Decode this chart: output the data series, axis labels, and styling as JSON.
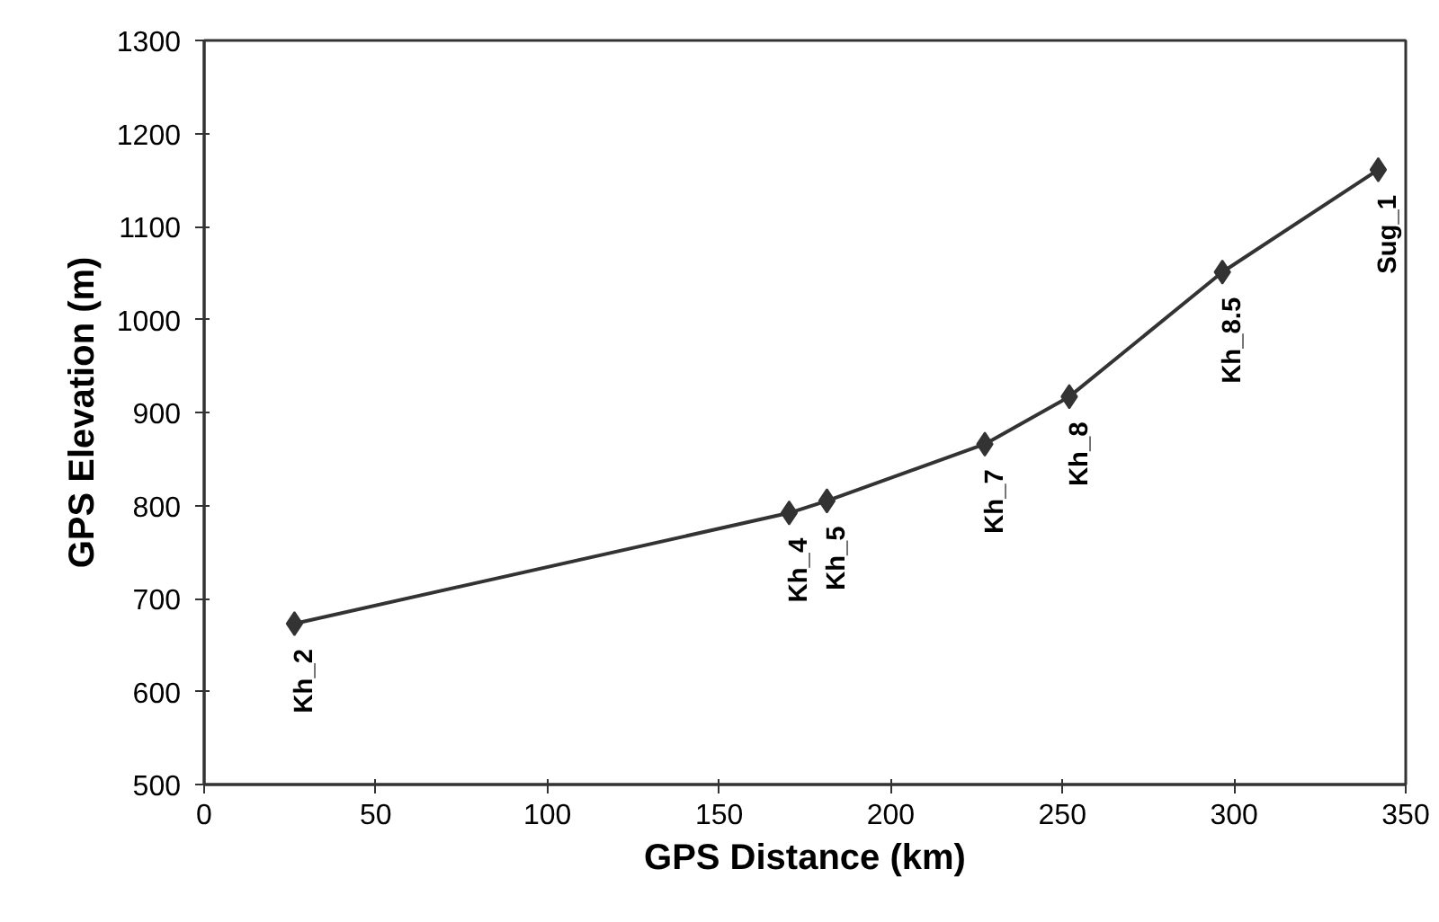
{
  "chart_data": {
    "type": "line",
    "xlabel": "GPS Distance (km)",
    "ylabel": "GPS Elevation (m)",
    "x": [
      26.3,
      170.4,
      181.4,
      227.4,
      252,
      296.6,
      342
    ],
    "series": [
      {
        "color": "#333333",
        "values": [
          673,
          792,
          805,
          866,
          917,
          1051,
          1161
        ]
      }
    ],
    "annotations": [
      {
        "text": "Kh_2",
        "x": 26.3,
        "y": 673
      },
      {
        "text": "Kh_4",
        "x": 170.4,
        "y": 792
      },
      {
        "text": "Kh_5",
        "x": 181.4,
        "y": 805
      },
      {
        "text": "Kh_7",
        "x": 227.4,
        "y": 866
      },
      {
        "text": "Kh_8",
        "x": 252,
        "y": 917
      },
      {
        "text": "Kh_8.5",
        "x": 296.6,
        "y": 1051
      },
      {
        "text": "Sug_1",
        "x": 342,
        "y": 1161
      }
    ],
    "xlim": [
      0,
      350
    ],
    "xticks": [
      0,
      50,
      100,
      150,
      200,
      250,
      300,
      350
    ],
    "ylim": [
      500,
      1300
    ],
    "yticks": [
      500,
      600,
      700,
      800,
      900,
      1000,
      1100,
      1200,
      1300
    ],
    "grid": false,
    "marker": "diamond",
    "line_style": "solid"
  }
}
